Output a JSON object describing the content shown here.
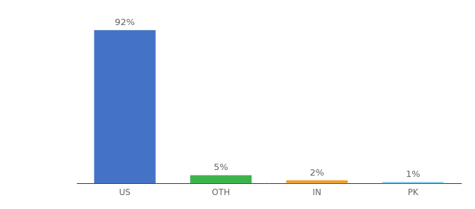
{
  "chart_data": {
    "type": "bar",
    "categories": [
      "US",
      "OTH",
      "IN",
      "PK"
    ],
    "values": [
      92,
      5,
      2,
      1
    ],
    "value_labels": [
      "92%",
      "5%",
      "2%",
      "1%"
    ],
    "data_labels": true,
    "colors": [
      "#4472c4",
      "#3db34a",
      "#f0a030",
      "#7ec8e3"
    ],
    "ylim": [
      0,
      100
    ],
    "grid": false,
    "tick_labels": "x"
  }
}
